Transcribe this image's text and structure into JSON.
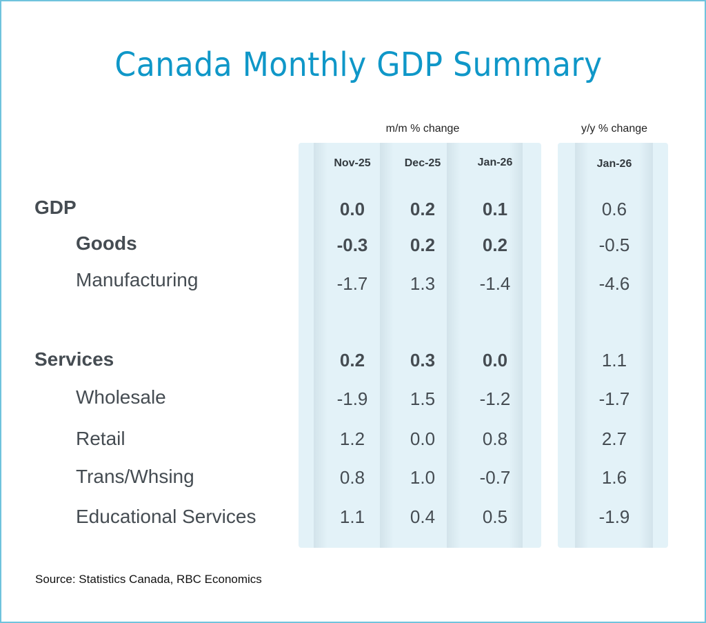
{
  "title": "Canada Monthly GDP Summary",
  "colors": {
    "title": "#0f97c8",
    "panel": "#e3f2f8",
    "border": "#6fc3dd",
    "text": "#454c52"
  },
  "groups": {
    "mm": "m/m % change",
    "yy": "y/y % change"
  },
  "columns": [
    "Nov-25",
    "Dec-25",
    "Jan-26",
    "Jan-26"
  ],
  "rows": [
    {
      "label": "GDP",
      "bold": true,
      "indent": false,
      "values": [
        "0.0",
        "0.2",
        "0.1",
        "0.6"
      ]
    },
    {
      "label": "Goods",
      "bold": true,
      "indent": true,
      "values": [
        "-0.3",
        "0.2",
        "0.2",
        "-0.5"
      ]
    },
    {
      "label": "Manufacturing",
      "bold": false,
      "indent": true,
      "values": [
        "-1.7",
        "1.3",
        "-1.4",
        "-4.6"
      ]
    },
    {
      "label": "Services",
      "bold": true,
      "indent": false,
      "values": [
        "0.2",
        "0.3",
        "0.0",
        "1.1"
      ]
    },
    {
      "label": "Wholesale",
      "bold": false,
      "indent": true,
      "values": [
        "-1.9",
        "1.5",
        "-1.2",
        "-1.7"
      ]
    },
    {
      "label": "Retail",
      "bold": false,
      "indent": true,
      "values": [
        "1.2",
        "0.0",
        "0.8",
        "2.7"
      ]
    },
    {
      "label": "Trans/Whsing",
      "bold": false,
      "indent": true,
      "values": [
        "0.8",
        "1.0",
        "-0.7",
        "1.6"
      ]
    },
    {
      "label": "Educational Services",
      "bold": false,
      "indent": true,
      "values": [
        "1.1",
        "0.4",
        "0.5",
        "-1.9"
      ]
    }
  ],
  "source": "Source:  Statistics Canada, RBC Economics"
}
